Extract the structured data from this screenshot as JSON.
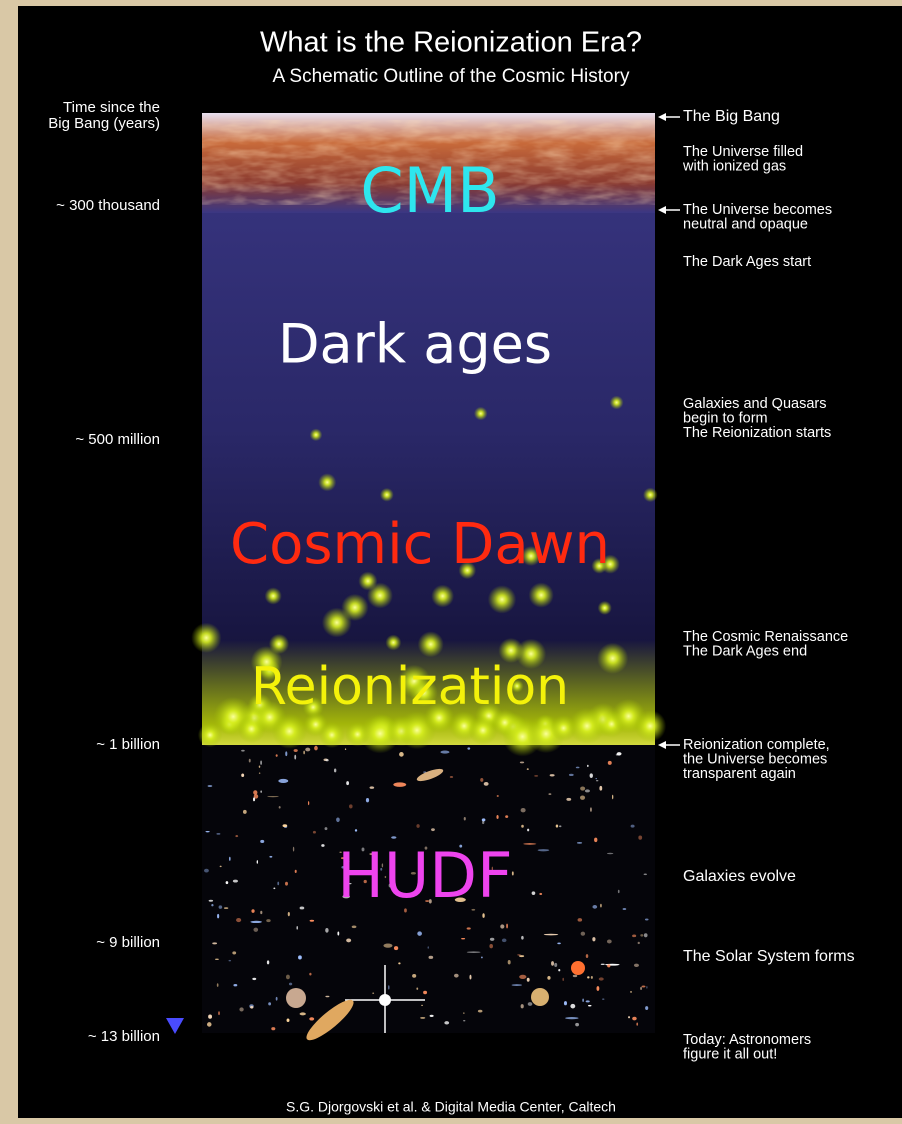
{
  "header": {
    "title": "What is the Reionization Era?",
    "subtitle": "A Schematic Outline of the Cosmic History"
  },
  "time_axis": {
    "label": [
      "Time since the",
      "Big Bang (years)"
    ],
    "ticks": [
      "~ 300 thousand",
      "~ 500 million",
      "~ 1 billion",
      "~ 9 billion",
      "~ 13 billion"
    ]
  },
  "eras": [
    {
      "label": "CMB",
      "color": "#2ee6ee"
    },
    {
      "label": "Dark ages",
      "color": "#ffffff"
    },
    {
      "label": "Cosmic Dawn",
      "color": "#ff2a10"
    },
    {
      "label": "Reionization",
      "color": "#f4f20a"
    },
    {
      "label": "HUDF",
      "color": "#ee44ee"
    }
  ],
  "annotations": [
    {
      "lines": [
        "The Big Bang"
      ],
      "arrow": true
    },
    {
      "lines": [
        "The Universe filled",
        "with ionized gas"
      ],
      "arrow": false
    },
    {
      "lines": [
        "The Universe becomes",
        "neutral and opaque"
      ],
      "arrow": true
    },
    {
      "lines": [
        "The Dark Ages start"
      ],
      "arrow": false
    },
    {
      "lines": [
        "Galaxies and Quasars",
        "begin to form",
        "The Reionization starts"
      ],
      "arrow": false
    },
    {
      "lines": [
        "The Cosmic Renaissance",
        "The Dark Ages end"
      ],
      "arrow": false
    },
    {
      "lines": [
        "Reionization complete,",
        "the Universe becomes",
        "transparent again"
      ],
      "arrow": true
    },
    {
      "lines": [
        "Galaxies evolve"
      ],
      "arrow": false
    },
    {
      "lines": [
        "The Solar System forms"
      ],
      "arrow": false
    },
    {
      "lines": [
        "Today: Astronomers",
        "figure it all out!"
      ],
      "arrow": false
    }
  ],
  "credit": "S.G. Djorgovski et al. & Digital Media Center, Caltech"
}
